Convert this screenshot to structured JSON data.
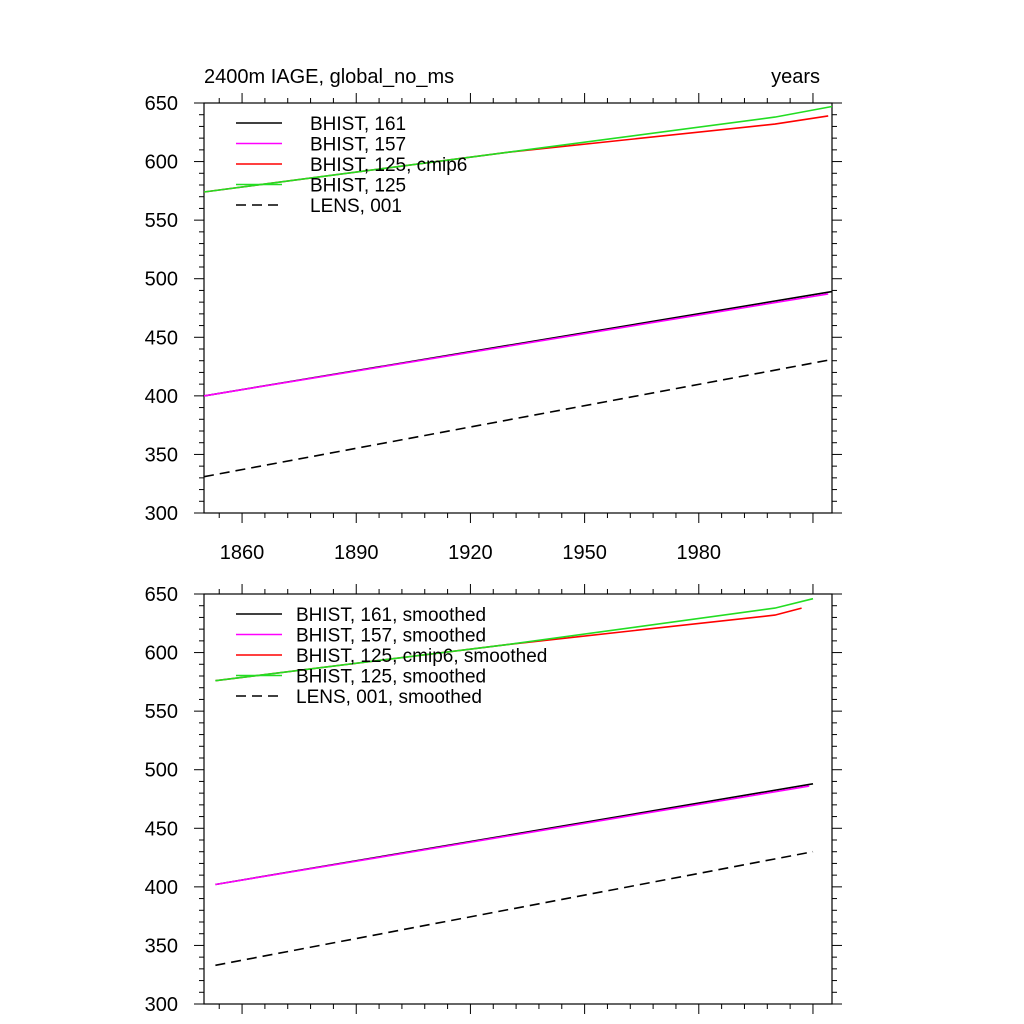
{
  "chart_data": [
    {
      "type": "line",
      "title": "2400m IAGE, global_no_ms",
      "units_label": "years",
      "xlim": [
        1850,
        2015
      ],
      "ylim": [
        300,
        650
      ],
      "xticks": [
        1860,
        1890,
        1920,
        1950,
        1980
      ],
      "yticks": [
        300,
        350,
        400,
        450,
        500,
        550,
        600,
        650
      ],
      "show_x_tick_labels": true,
      "grid": false,
      "legend_position": "top-left",
      "series": [
        {
          "name": "BHIST, 161",
          "color": "#000000",
          "dash": "solid",
          "x": [
            1850,
            2015
          ],
          "y": [
            400,
            489
          ]
        },
        {
          "name": "BHIST, 157",
          "color": "#ff00ff",
          "dash": "solid",
          "x": [
            1850,
            2014
          ],
          "y": [
            400,
            487
          ]
        },
        {
          "name": "BHIST, 125, cmip6",
          "color": "#ff0000",
          "dash": "solid",
          "x": [
            1850,
            1930,
            2000,
            2014
          ],
          "y": [
            574,
            608,
            632,
            639
          ]
        },
        {
          "name": "BHIST, 125",
          "color": "#22dd22",
          "dash": "solid",
          "x": [
            1850,
            1930,
            2000,
            2015
          ],
          "y": [
            574,
            608,
            638,
            647
          ]
        },
        {
          "name": "LENS, 001",
          "color": "#000000",
          "dash": "dashed",
          "x": [
            1850,
            2015
          ],
          "y": [
            331,
            431
          ]
        }
      ]
    },
    {
      "type": "line",
      "title": "",
      "xlim": [
        1850,
        2015
      ],
      "ylim": [
        300,
        650
      ],
      "xticks": [
        1860,
        1890,
        1920,
        1950,
        1980
      ],
      "yticks": [
        300,
        350,
        400,
        450,
        500,
        550,
        600,
        650
      ],
      "show_x_tick_labels": false,
      "grid": false,
      "legend_position": "top-left",
      "series": [
        {
          "name": "BHIST, 161, smoothed",
          "color": "#000000",
          "dash": "solid",
          "x": [
            1853,
            2010
          ],
          "y": [
            402,
            488
          ]
        },
        {
          "name": "BHIST, 157, smoothed",
          "color": "#ff00ff",
          "dash": "solid",
          "x": [
            1853,
            2009
          ],
          "y": [
            402,
            486
          ]
        },
        {
          "name": "BHIST, 125, cmip6, smoothed",
          "color": "#ff0000",
          "dash": "solid",
          "x": [
            1853,
            1930,
            2000,
            2007
          ],
          "y": [
            576,
            607,
            632,
            638
          ]
        },
        {
          "name": "BHIST, 125, smoothed",
          "color": "#22dd22",
          "dash": "solid",
          "x": [
            1853,
            1930,
            2000,
            2010
          ],
          "y": [
            576,
            607,
            638,
            646
          ]
        },
        {
          "name": "LENS, 001, smoothed",
          "color": "#000000",
          "dash": "dashed",
          "x": [
            1853,
            2010
          ],
          "y": [
            333,
            430
          ]
        }
      ]
    }
  ]
}
